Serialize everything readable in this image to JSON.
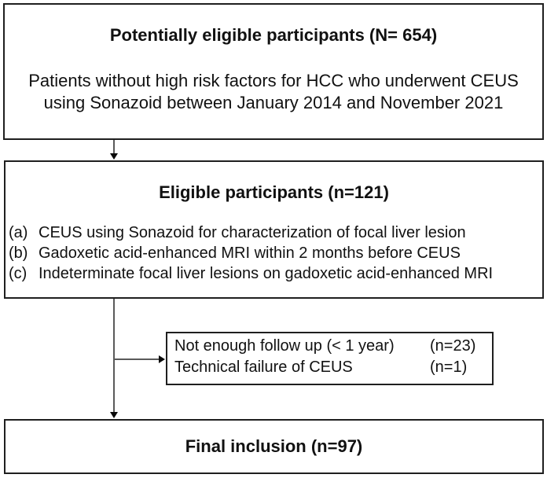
{
  "diagram": {
    "top_box": {
      "title": "Potentially eligible participants (N= 654)",
      "body_lines": [
        "Patients without high risk factors for HCC who underwent CEUS",
        "using Sonazoid between January 2014 and November 2021"
      ]
    },
    "eligible_box": {
      "title": "Eligible participants (n=121)",
      "criteria": [
        {
          "label": "(a)",
          "text": "CEUS using Sonazoid for characterization of focal liver lesion"
        },
        {
          "label": "(b)",
          "text": "Gadoxetic acid-enhanced MRI within 2 months before CEUS"
        },
        {
          "label": "(c)",
          "text": "Indeterminate focal liver lesions on gadoxetic acid-enhanced MRI"
        }
      ]
    },
    "exclusion_box": {
      "items": [
        {
          "reason": "Not enough follow up (< 1 year)",
          "count": "(n=23)"
        },
        {
          "reason": "Technical failure of CEUS",
          "count": "(n=1)"
        }
      ]
    },
    "final_box": {
      "title": "Final inclusion (n=97)"
    },
    "colors": {
      "background": "#ffffff",
      "border": "#1f1f1f",
      "connector_line": "#5a5a5a",
      "text": "#111111"
    }
  }
}
